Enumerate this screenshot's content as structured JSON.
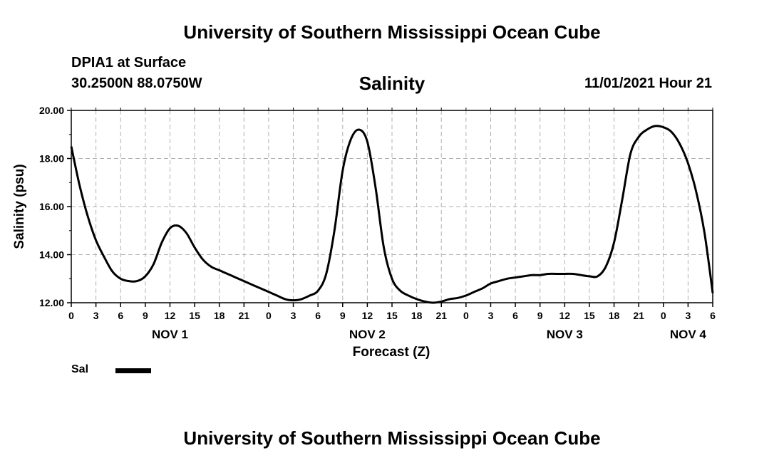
{
  "header": {
    "title": "University of Southern Mississippi Ocean Cube",
    "station": "DPIA1 at Surface",
    "location": "30.2500N  88.0750W",
    "datetime": "11/01/2021 Hour 21"
  },
  "footer": {
    "title": "University of Southern Mississippi Ocean Cube"
  },
  "legend": {
    "label": "Sal",
    "color": "#000000"
  },
  "chart_data": {
    "type": "line",
    "title": "Salinity",
    "xlabel": "Forecast (Z)",
    "ylabel": "Salinity (psu)",
    "xlim": [
      0,
      78
    ],
    "ylim": [
      12,
      20
    ],
    "grid": true,
    "y_ticks": [
      12,
      14,
      16,
      18,
      20
    ],
    "y_tick_labels": [
      "12.00",
      "14.00",
      "16.00",
      "18.00",
      "20.00"
    ],
    "x_ticks": [
      0,
      3,
      6,
      9,
      12,
      15,
      18,
      21,
      24,
      27,
      30,
      33,
      36,
      39,
      42,
      45,
      48,
      51,
      54,
      57,
      60,
      63,
      66,
      69,
      72,
      75,
      78
    ],
    "x_tick_labels": [
      "0",
      "3",
      "6",
      "9",
      "12",
      "15",
      "18",
      "21",
      "0",
      "3",
      "6",
      "9",
      "12",
      "15",
      "18",
      "21",
      "0",
      "3",
      "6",
      "9",
      "12",
      "15",
      "18",
      "21",
      "0",
      "3",
      "6"
    ],
    "date_labels": [
      {
        "label": "NOV 1",
        "x": 12
      },
      {
        "label": "NOV 2",
        "x": 36
      },
      {
        "label": "NOV 3",
        "x": 60
      },
      {
        "label": "NOV 4",
        "x": 75
      }
    ],
    "series": [
      {
        "name": "Sal",
        "x": [
          0,
          1,
          2,
          3,
          4,
          5,
          6,
          7,
          8,
          9,
          10,
          11,
          12,
          13,
          14,
          15,
          16,
          17,
          18,
          19,
          20,
          21,
          22,
          23,
          24,
          25,
          26,
          27,
          28,
          29,
          30,
          31,
          32,
          33,
          34,
          35,
          36,
          37,
          38,
          39,
          40,
          41,
          42,
          43,
          44,
          45,
          46,
          47,
          48,
          49,
          50,
          51,
          52,
          53,
          54,
          55,
          56,
          57,
          58,
          59,
          60,
          61,
          62,
          63,
          64,
          65,
          66,
          67,
          68,
          69,
          70,
          71,
          72,
          73,
          74,
          75,
          76,
          77,
          78
        ],
        "values": [
          18.5,
          16.9,
          15.6,
          14.6,
          13.9,
          13.3,
          13.0,
          12.9,
          12.9,
          13.1,
          13.6,
          14.5,
          15.1,
          15.2,
          14.9,
          14.3,
          13.8,
          13.5,
          13.35,
          13.2,
          13.05,
          12.9,
          12.75,
          12.6,
          12.45,
          12.3,
          12.15,
          12.1,
          12.15,
          12.3,
          12.5,
          13.2,
          15.0,
          17.5,
          18.8,
          19.2,
          18.7,
          16.8,
          14.3,
          13.0,
          12.5,
          12.3,
          12.15,
          12.05,
          12.0,
          12.05,
          12.15,
          12.2,
          12.3,
          12.45,
          12.6,
          12.8,
          12.9,
          13.0,
          13.05,
          13.1,
          13.15,
          13.15,
          13.2,
          13.2,
          13.2,
          13.2,
          13.15,
          13.1,
          13.1,
          13.5,
          14.5,
          16.3,
          18.2,
          18.9,
          19.2,
          19.35,
          19.3,
          19.1,
          18.6,
          17.8,
          16.6,
          14.9,
          12.4
        ]
      }
    ]
  }
}
